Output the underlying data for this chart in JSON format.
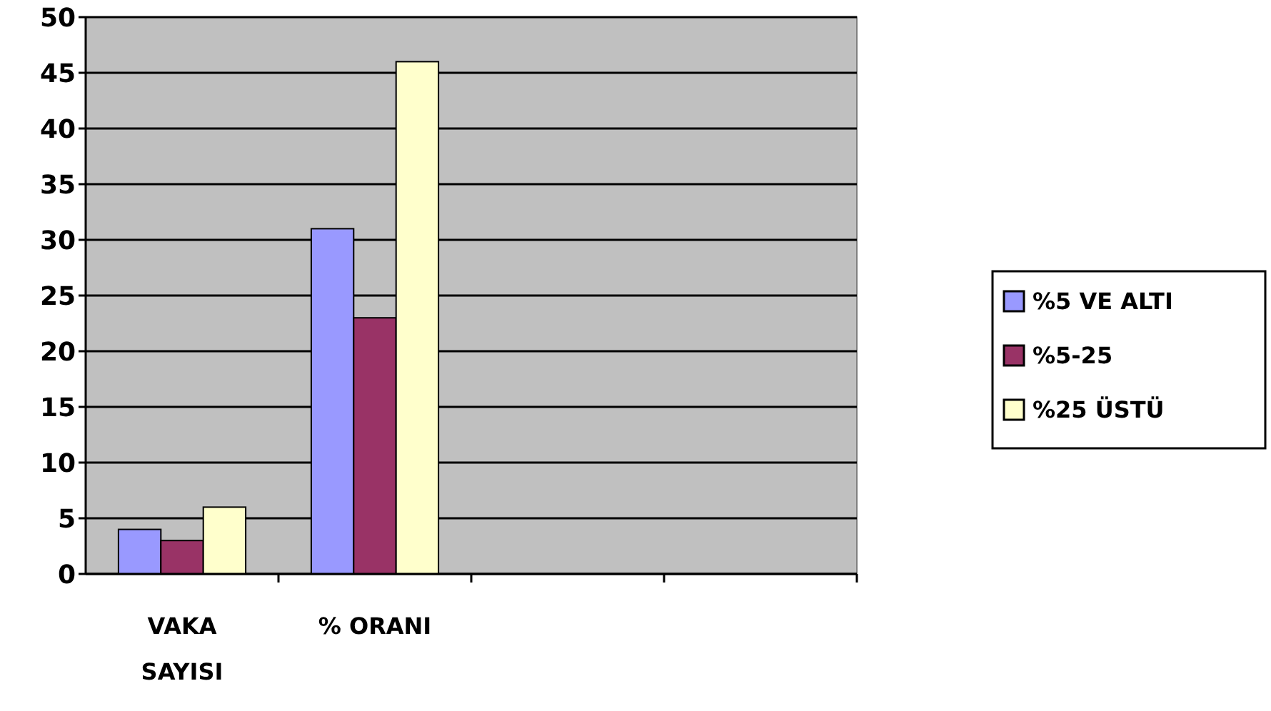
{
  "chart_data": {
    "type": "bar",
    "categories": [
      "VAKA SAYISI",
      "% ORANI",
      null,
      null
    ],
    "series": [
      {
        "name": "%5 VE ALTI",
        "color": "#9999ff",
        "values": [
          4,
          31,
          null,
          null
        ]
      },
      {
        "name": "%5-25",
        "color": "#993366",
        "values": [
          3,
          23,
          null,
          null
        ]
      },
      {
        "name": "%25 ÜSTÜ",
        "color": "#ffffcc",
        "values": [
          6,
          46,
          null,
          null
        ]
      }
    ],
    "ylim": [
      0,
      50
    ],
    "yticks": [
      0,
      5,
      10,
      15,
      20,
      25,
      30,
      35,
      40,
      45,
      50
    ],
    "grid": "y",
    "legend": "right"
  }
}
